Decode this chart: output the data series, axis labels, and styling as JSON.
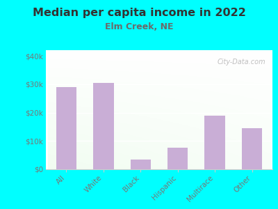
{
  "title": "Median per capita income in 2022",
  "subtitle": "Elm Creek, NE",
  "categories": [
    "All",
    "White",
    "Black",
    "Hispanic",
    "Multirace",
    "Other"
  ],
  "values": [
    29000,
    30500,
    3500,
    7500,
    19000,
    14500
  ],
  "bar_color": "#c9aed6",
  "background_color": "#00ffff",
  "title_color": "#333333",
  "subtitle_color": "#6a6a6a",
  "tick_color": "#777777",
  "ytick_labels": [
    "$0",
    "$10k",
    "$20k",
    "$30k",
    "$40k"
  ],
  "ytick_values": [
    0,
    10000,
    20000,
    30000,
    40000
  ],
  "ylim": [
    0,
    42000
  ],
  "watermark": "City-Data.com"
}
